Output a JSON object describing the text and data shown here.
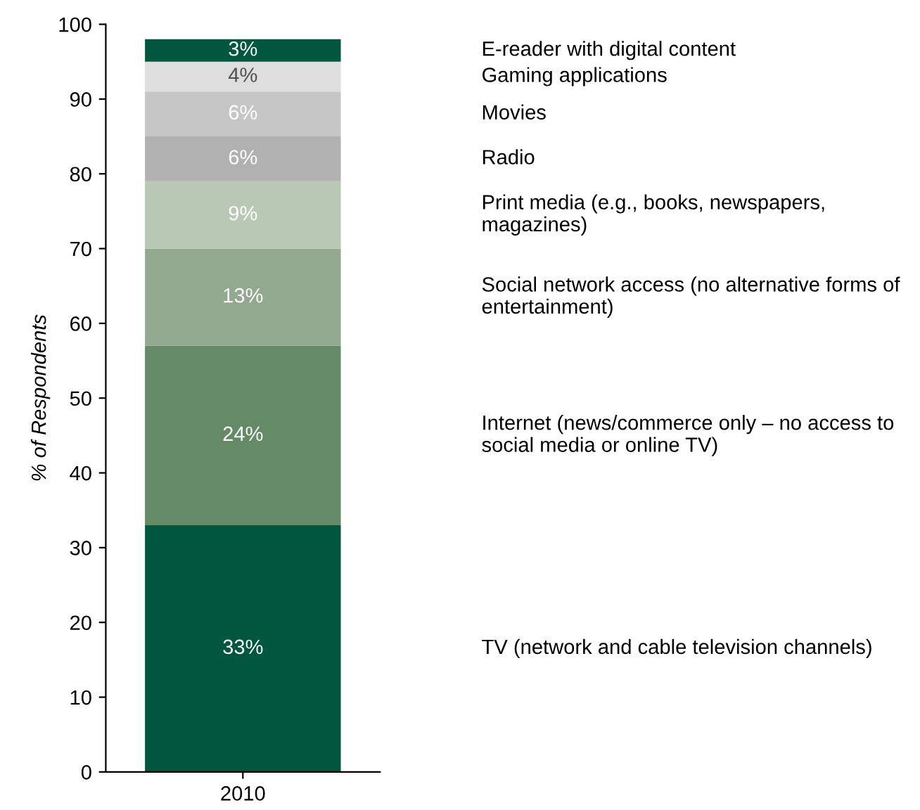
{
  "chart_data": {
    "type": "bar",
    "stacked": true,
    "ylabel": "% of Respondents",
    "categories": [
      "2010"
    ],
    "ylim": [
      0,
      100
    ],
    "yticks": [
      0,
      10,
      20,
      30,
      40,
      50,
      60,
      70,
      80,
      90,
      100
    ],
    "grid": false,
    "legend": false,
    "series": [
      {
        "name": "TV (network and cable television channels)",
        "color": "#00563f",
        "values": [
          33
        ],
        "value_labels": [
          "33%"
        ]
      },
      {
        "name": "Internet (news/commerce only – no access to social media or online TV)",
        "color": "#648a68",
        "values": [
          24
        ],
        "value_labels": [
          "24%"
        ]
      },
      {
        "name": "Social network access (no alternative forms of entertainment)",
        "color": "#93a98f",
        "values": [
          13
        ],
        "value_labels": [
          "13%"
        ]
      },
      {
        "name": "Print media (e.g., books, newspapers, magazines)",
        "color": "#b9c8b5",
        "values": [
          9
        ],
        "value_labels": [
          "9%"
        ]
      },
      {
        "name": "Radio",
        "color": "#b1b1b1",
        "values": [
          6
        ],
        "value_labels": [
          "6%"
        ]
      },
      {
        "name": "Movies",
        "color": "#c6c6c6",
        "values": [
          6
        ],
        "value_labels": [
          "6%"
        ]
      },
      {
        "name": "Gaming applications",
        "color": "#dedede",
        "values": [
          4
        ],
        "value_labels": [
          "4%"
        ]
      },
      {
        "name": "E-reader with digital content",
        "color": "#00563f",
        "values": [
          3
        ],
        "value_labels": [
          "3%"
        ]
      }
    ]
  }
}
